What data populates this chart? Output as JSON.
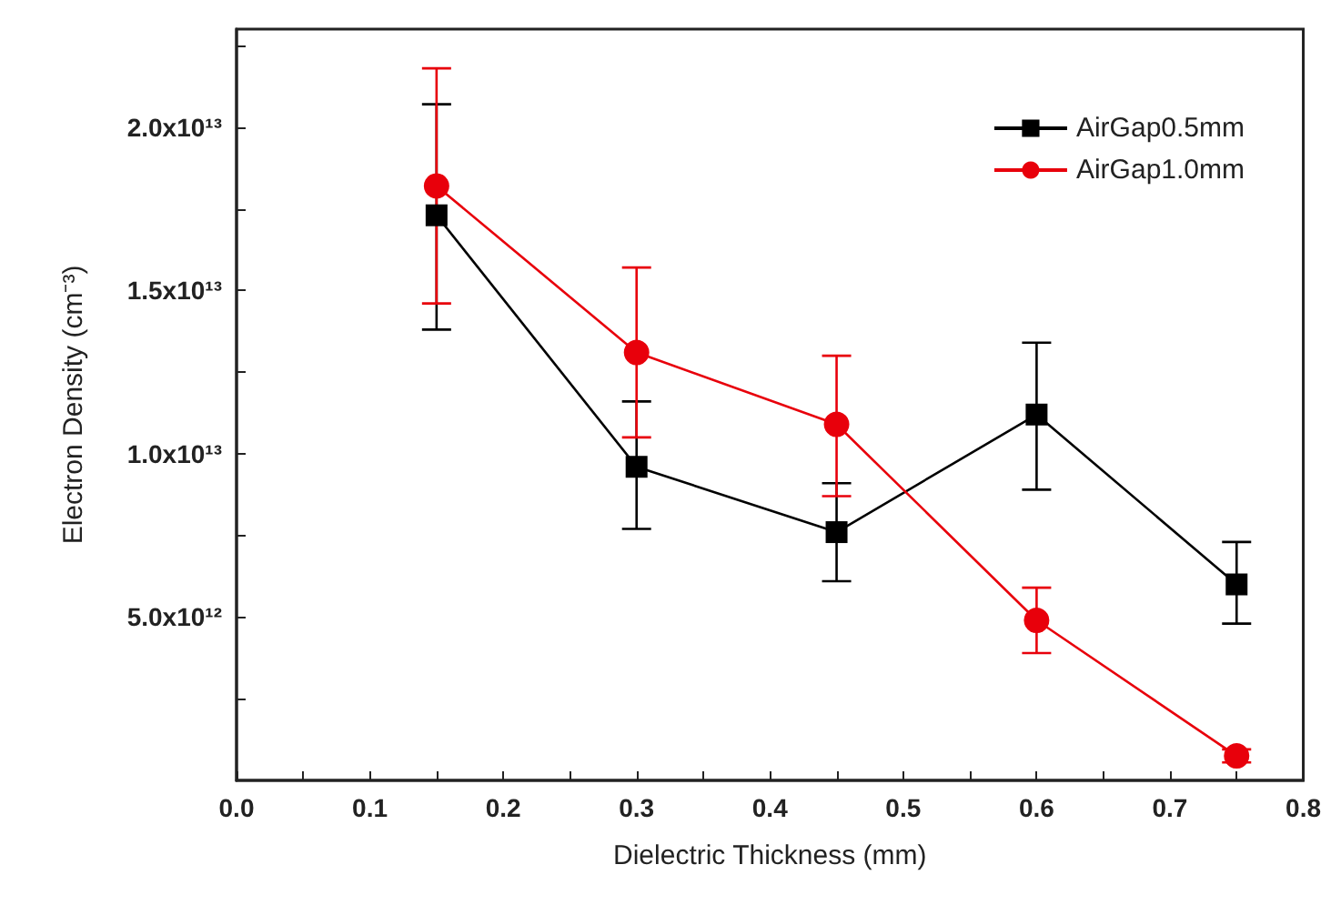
{
  "chart_data": {
    "type": "line",
    "xlabel": "Dielectric Thickness (mm)",
    "ylabel": "Electron Density (cm⁻³)",
    "x": [
      0.15,
      0.3,
      0.45,
      0.6,
      0.75
    ],
    "series": [
      {
        "name": "AirGap0.5mm",
        "color": "#000000",
        "marker": "square",
        "values": [
          17300000000000.0,
          9600000000000.0,
          7600000000000.0,
          11200000000000.0,
          6000000000000.0
        ],
        "errors": [
          [
            13800000000000.0,
            20700000000000.0
          ],
          [
            7700000000000.0,
            11600000000000.0
          ],
          [
            6100000000000.0,
            9100000000000.0
          ],
          [
            8900000000000.0,
            13400000000000.0
          ],
          [
            4800000000000.0,
            7300000000000.0
          ]
        ]
      },
      {
        "name": "AirGap1.0mm",
        "color": "#e8000b",
        "marker": "circle",
        "values": [
          18200000000000.0,
          13100000000000.0,
          10900000000000.0,
          4900000000000.0,
          750000000000.0
        ],
        "errors": [
          [
            14600000000000.0,
            21800000000000.0
          ],
          [
            10500000000000.0,
            15700000000000.0
          ],
          [
            8700000000000.0,
            13000000000000.0
          ],
          [
            3900000000000.0,
            5900000000000.0
          ],
          [
            550000000000.0,
            950000000000.0
          ]
        ]
      }
    ],
    "xlim": [
      0,
      0.8
    ],
    "xticks": [
      {
        "value": 0,
        "label": "0.0"
      },
      {
        "value": 0.05,
        "label": null
      },
      0.1,
      {
        "value": 0.15,
        "label": null
      },
      0.2,
      {
        "value": 0.25,
        "label": null
      },
      0.3,
      {
        "value": 0.35,
        "label": null
      },
      0.4,
      {
        "value": 0.45,
        "label": null
      },
      0.5,
      {
        "value": 0.55,
        "label": null
      },
      0.6,
      {
        "value": 0.65,
        "label": null
      },
      0.7,
      {
        "value": 0.75,
        "label": null
      },
      0.8
    ],
    "ylim": [
      0,
      23000000000000.0
    ],
    "yticks": [
      {
        "value": 2500000000000.0,
        "label": null
      },
      {
        "value": 5000000000000.0,
        "label": "5.0x10¹²"
      },
      {
        "value": 7500000000000.0,
        "label": null
      },
      {
        "value": 10000000000000.0,
        "label": "1.0x10¹³"
      },
      {
        "value": 12500000000000.0,
        "label": null
      },
      {
        "value": 15000000000000.0,
        "label": "1.5x10¹³"
      },
      {
        "value": 17500000000000.0,
        "label": null
      },
      {
        "value": 20000000000000.0,
        "label": "2.0x10¹³"
      },
      {
        "value": 22500000000000.0,
        "label": null
      }
    ],
    "grid": false,
    "legend": "top right",
    "line_style": "solid"
  }
}
